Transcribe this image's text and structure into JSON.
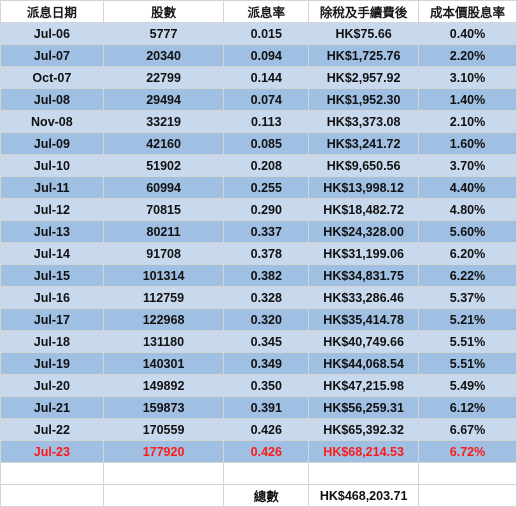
{
  "headers": [
    "派息日期",
    "股數",
    "派息率",
    "除稅及手續費後",
    "成本價股息率"
  ],
  "rows": [
    {
      "date": "Jul-06",
      "shares": "5777",
      "rate": "0.015",
      "net": "HK$75.66",
      "yield": "0.40%"
    },
    {
      "date": "Jul-07",
      "shares": "20340",
      "rate": "0.094",
      "net": "HK$1,725.76",
      "yield": "2.20%"
    },
    {
      "date": "Oct-07",
      "shares": "22799",
      "rate": "0.144",
      "net": "HK$2,957.92",
      "yield": "3.10%"
    },
    {
      "date": "Jul-08",
      "shares": "29494",
      "rate": "0.074",
      "net": "HK$1,952.30",
      "yield": "1.40%"
    },
    {
      "date": "Nov-08",
      "shares": "33219",
      "rate": "0.113",
      "net": "HK$3,373.08",
      "yield": "2.10%"
    },
    {
      "date": "Jul-09",
      "shares": "42160",
      "rate": "0.085",
      "net": "HK$3,241.72",
      "yield": "1.60%"
    },
    {
      "date": "Jul-10",
      "shares": "51902",
      "rate": "0.208",
      "net": "HK$9,650.56",
      "yield": "3.70%"
    },
    {
      "date": "Jul-11",
      "shares": "60994",
      "rate": "0.255",
      "net": "HK$13,998.12",
      "yield": "4.40%"
    },
    {
      "date": "Jul-12",
      "shares": "70815",
      "rate": "0.290",
      "net": "HK$18,482.72",
      "yield": "4.80%"
    },
    {
      "date": "Jul-13",
      "shares": "80211",
      "rate": "0.337",
      "net": "HK$24,328.00",
      "yield": "5.60%"
    },
    {
      "date": "Jul-14",
      "shares": "91708",
      "rate": "0.378",
      "net": "HK$31,199.06",
      "yield": "6.20%"
    },
    {
      "date": "Jul-15",
      "shares": "101314",
      "rate": "0.382",
      "net": "HK$34,831.75",
      "yield": "6.22%"
    },
    {
      "date": "Jul-16",
      "shares": "112759",
      "rate": "0.328",
      "net": "HK$33,286.46",
      "yield": "5.37%"
    },
    {
      "date": "Jul-17",
      "shares": "122968",
      "rate": "0.320",
      "net": "HK$35,414.78",
      "yield": "5.21%"
    },
    {
      "date": "Jul-18",
      "shares": "131180",
      "rate": "0.345",
      "net": "HK$40,749.66",
      "yield": "5.51%"
    },
    {
      "date": "Jul-19",
      "shares": "140301",
      "rate": "0.349",
      "net": "HK$44,068.54",
      "yield": "5.51%"
    },
    {
      "date": "Jul-20",
      "shares": "149892",
      "rate": "0.350",
      "net": "HK$47,215.98",
      "yield": "5.49%"
    },
    {
      "date": "Jul-21",
      "shares": "159873",
      "rate": "0.391",
      "net": "HK$56,259.31",
      "yield": "6.12%"
    },
    {
      "date": "Jul-22",
      "shares": "170559",
      "rate": "0.426",
      "net": "HK$65,392.32",
      "yield": "6.67%"
    },
    {
      "date": "Jul-23",
      "shares": "177920",
      "rate": "0.426",
      "net": "HK$68,214.53",
      "yield": "6.72%",
      "highlight": true
    }
  ],
  "total": {
    "label": "總數",
    "value": "HK$468,203.71"
  },
  "colors": {
    "row_light": "#c9d9ed",
    "row_dark": "#9fbfe3",
    "highlight_text": "#ff1a1a",
    "gridline": "#d4d4d4"
  }
}
